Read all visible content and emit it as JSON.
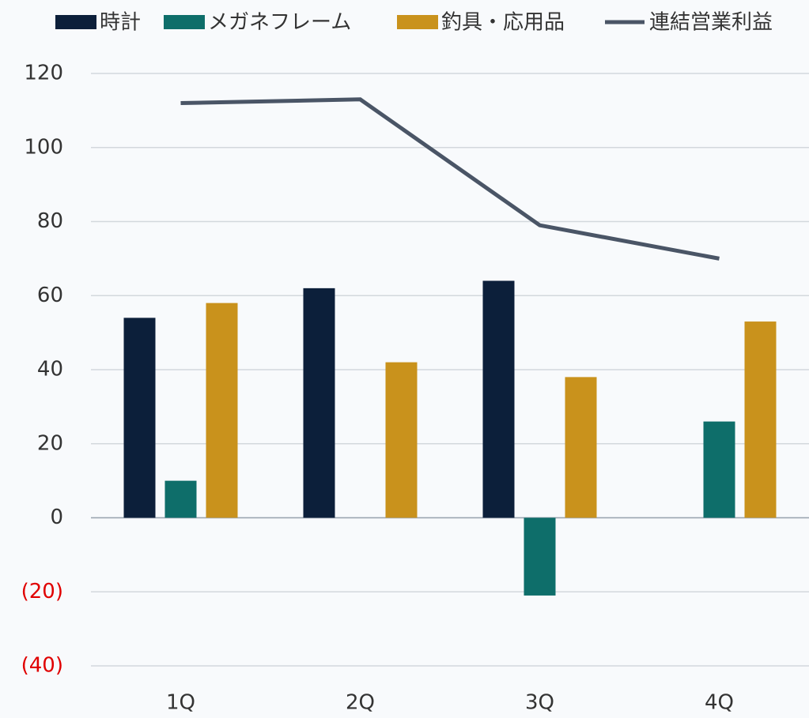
{
  "chart_data": {
    "type": "bar_line",
    "categories": [
      "1Q",
      "2Q",
      "3Q",
      "4Q"
    ],
    "series": [
      {
        "name": "時計",
        "type": "bar",
        "color": "#0c1f3a",
        "values": [
          54,
          62,
          64,
          null
        ]
      },
      {
        "name": "メガネフレーム",
        "type": "bar",
        "color": "#0e6e6a",
        "values": [
          10,
          null,
          -21,
          26
        ]
      },
      {
        "name": "釣具・応用品",
        "type": "bar",
        "color": "#c9921c",
        "values": [
          58,
          42,
          38,
          53
        ]
      },
      {
        "name": "連結営業利益",
        "type": "line",
        "color": "#4a5566",
        "values": [
          112,
          113,
          79,
          70
        ]
      }
    ],
    "ylim": [
      -40,
      120
    ],
    "yticks": [
      {
        "value": -40,
        "label": "(40)"
      },
      {
        "value": -20,
        "label": "(20)"
      },
      0,
      20,
      40,
      60,
      80,
      100,
      120
    ],
    "negative_tick_color": "#e00000",
    "grid": true,
    "legend": "top"
  }
}
